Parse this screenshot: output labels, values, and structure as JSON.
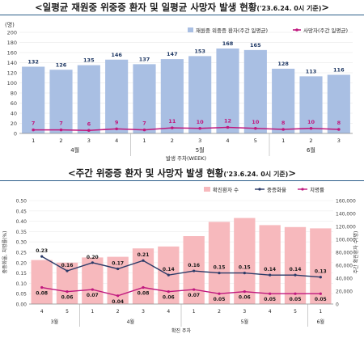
{
  "chart_data": [
    {
      "type": "bar",
      "title": "<일평균 재원중 위중증 환자 및 일평균 사망자 발생 현황",
      "title_note": "('23.6.24. 0시 기준)",
      "title_close": ">",
      "y_unit": "(명)",
      "ylim": [
        0,
        200
      ],
      "yticks": [
        "0",
        "20",
        "40",
        "60",
        "80",
        "100",
        "120",
        "140",
        "160",
        "180",
        "200"
      ],
      "grid": true,
      "legend_position": "top-right",
      "x_title": "발생 주차(WEEK)",
      "categories": [
        "1",
        "2",
        "3",
        "4",
        "1",
        "2",
        "3",
        "4",
        "5",
        "1",
        "2",
        "3"
      ],
      "month_groups": [
        {
          "label": "4월",
          "start": 0,
          "end": 3
        },
        {
          "label": "5월",
          "start": 4,
          "end": 8
        },
        {
          "label": "6월",
          "start": 9,
          "end": 11
        }
      ],
      "series": [
        {
          "name": "재원중 위중증 환자(주간 일평균)",
          "kind": "bar",
          "color": "#a9bfe3",
          "values": [
            132,
            126,
            135,
            146,
            137,
            147,
            153,
            168,
            165,
            128,
            113,
            116
          ]
        },
        {
          "name": "사망자(주간 일평균)",
          "kind": "line",
          "color": "#c0187e",
          "values": [
            7,
            7,
            6,
            9,
            7,
            11,
            10,
            12,
            10,
            8,
            10,
            8
          ]
        }
      ]
    },
    {
      "type": "bar",
      "title": "<주간 위중증 환자 및 사망자 발생 현황",
      "title_note": "('23.6.24. 0시 기준)",
      "title_close": ">",
      "y_left_label": "중증화율, 치명률(%)",
      "y_right_label": "주간 확진환자 수(명)",
      "left_lim": [
        0,
        0.5
      ],
      "left_ticks": [
        "0.00",
        "0.05",
        "0.10",
        "0.15",
        "0.20",
        "0.25",
        "0.30",
        "0.35",
        "0.40",
        "0.45",
        "0.50"
      ],
      "right_lim": [
        0,
        160000
      ],
      "right_ticks": [
        "0",
        "20,000",
        "40,000",
        "60,000",
        "80,000",
        "100,000",
        "120,000",
        "140,000",
        "160,000"
      ],
      "legend_position": "top-right",
      "x_title": "확진 주차",
      "categories": [
        "4",
        "5",
        "1",
        "2",
        "3",
        "4",
        "1",
        "2",
        "3",
        "4",
        "5",
        "1"
      ],
      "month_groups": [
        {
          "label": "3월",
          "start": 0,
          "end": 1
        },
        {
          "label": "4월",
          "start": 2,
          "end": 5
        },
        {
          "label": "5월",
          "start": 6,
          "end": 10
        },
        {
          "label": "6월",
          "start": 11,
          "end": 11
        }
      ],
      "series": [
        {
          "name": "확진환자 수",
          "kind": "bar",
          "axis": "right",
          "color": "#f7b9bd",
          "values": [
            68000,
            64000,
            72000,
            73000,
            86000,
            89000,
            105000,
            127000,
            133000,
            122000,
            119000,
            117000
          ]
        },
        {
          "name": "중증화율",
          "kind": "line",
          "axis": "left",
          "color": "#2b3a67",
          "values": [
            0.23,
            0.16,
            0.2,
            0.17,
            0.21,
            0.14,
            0.16,
            0.15,
            0.15,
            0.14,
            0.14,
            0.13
          ]
        },
        {
          "name": "치명률",
          "kind": "line",
          "axis": "left",
          "color": "#c0187e",
          "values": [
            0.08,
            0.06,
            0.07,
            0.04,
            0.08,
            0.06,
            0.07,
            0.05,
            0.06,
            0.05,
            0.05,
            0.05
          ]
        }
      ]
    }
  ]
}
